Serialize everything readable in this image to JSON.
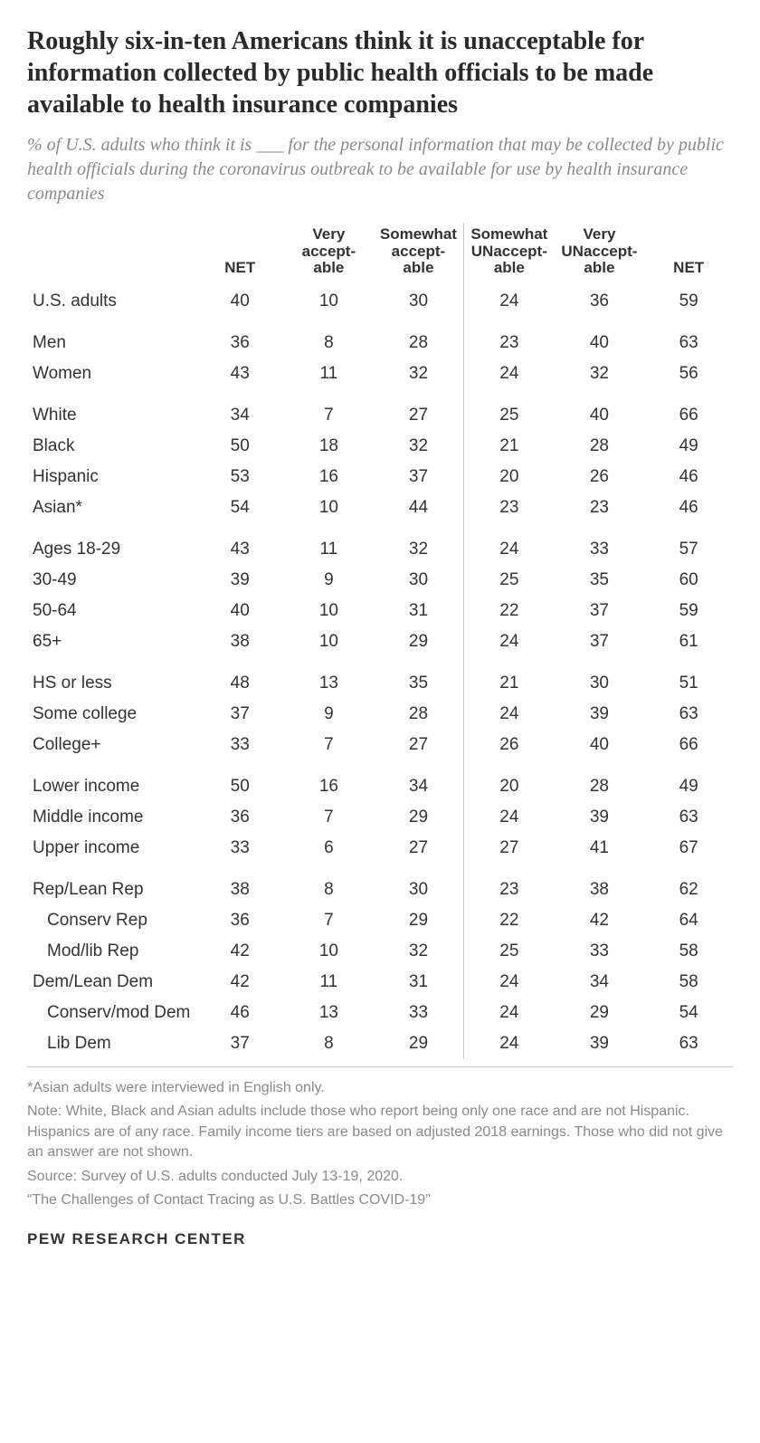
{
  "title": "Roughly six-in-ten Americans think it is unacceptable for information collected by public health officials to be made available to health insurance companies",
  "subtitle": "% of U.S. adults who think it is ___ for the personal information that may be collected by public health officials during the coronavirus outbreak to be available for use by health insurance companies",
  "columns": {
    "net_left": "NET",
    "very_accept": "Very accept-able",
    "somewhat_accept": "Somewhat accept-able",
    "somewhat_unaccept": "Somewhat UNaccept-able",
    "very_unaccept": "Very UNaccept-able",
    "net_right": "NET"
  },
  "groups": [
    [
      {
        "label": "U.S. adults",
        "indent": false,
        "v": [
          "40",
          "10",
          "30",
          "24",
          "36",
          "59"
        ]
      }
    ],
    [
      {
        "label": "Men",
        "indent": false,
        "v": [
          "36",
          "8",
          "28",
          "23",
          "40",
          "63"
        ]
      },
      {
        "label": "Women",
        "indent": false,
        "v": [
          "43",
          "11",
          "32",
          "24",
          "32",
          "56"
        ]
      }
    ],
    [
      {
        "label": "White",
        "indent": false,
        "v": [
          "34",
          "7",
          "27",
          "25",
          "40",
          "66"
        ]
      },
      {
        "label": "Black",
        "indent": false,
        "v": [
          "50",
          "18",
          "32",
          "21",
          "28",
          "49"
        ]
      },
      {
        "label": "Hispanic",
        "indent": false,
        "v": [
          "53",
          "16",
          "37",
          "20",
          "26",
          "46"
        ]
      },
      {
        "label": "Asian*",
        "indent": false,
        "v": [
          "54",
          "10",
          "44",
          "23",
          "23",
          "46"
        ]
      }
    ],
    [
      {
        "label": "Ages 18-29",
        "indent": false,
        "v": [
          "43",
          "11",
          "32",
          "24",
          "33",
          "57"
        ]
      },
      {
        "label": "30-49",
        "indent": false,
        "v": [
          "39",
          "9",
          "30",
          "25",
          "35",
          "60"
        ]
      },
      {
        "label": "50-64",
        "indent": false,
        "v": [
          "40",
          "10",
          "31",
          "22",
          "37",
          "59"
        ]
      },
      {
        "label": "65+",
        "indent": false,
        "v": [
          "38",
          "10",
          "29",
          "24",
          "37",
          "61"
        ]
      }
    ],
    [
      {
        "label": "HS or less",
        "indent": false,
        "v": [
          "48",
          "13",
          "35",
          "21",
          "30",
          "51"
        ]
      },
      {
        "label": "Some college",
        "indent": false,
        "v": [
          "37",
          "9",
          "28",
          "24",
          "39",
          "63"
        ]
      },
      {
        "label": "College+",
        "indent": false,
        "v": [
          "33",
          "7",
          "27",
          "26",
          "40",
          "66"
        ]
      }
    ],
    [
      {
        "label": "Lower income",
        "indent": false,
        "v": [
          "50",
          "16",
          "34",
          "20",
          "28",
          "49"
        ]
      },
      {
        "label": "Middle income",
        "indent": false,
        "v": [
          "36",
          "7",
          "29",
          "24",
          "39",
          "63"
        ]
      },
      {
        "label": "Upper income",
        "indent": false,
        "v": [
          "33",
          "6",
          "27",
          "27",
          "41",
          "67"
        ]
      }
    ],
    [
      {
        "label": "Rep/Lean Rep",
        "indent": false,
        "v": [
          "38",
          "8",
          "30",
          "23",
          "38",
          "62"
        ]
      },
      {
        "label": "Conserv Rep",
        "indent": true,
        "v": [
          "36",
          "7",
          "29",
          "22",
          "42",
          "64"
        ]
      },
      {
        "label": "Mod/lib Rep",
        "indent": true,
        "v": [
          "42",
          "10",
          "32",
          "25",
          "33",
          "58"
        ]
      },
      {
        "label": "Dem/Lean Dem",
        "indent": false,
        "v": [
          "42",
          "11",
          "31",
          "24",
          "34",
          "58"
        ]
      },
      {
        "label": "Conserv/mod Dem",
        "indent": true,
        "v": [
          "46",
          "13",
          "33",
          "24",
          "29",
          "54"
        ]
      },
      {
        "label": "Lib Dem",
        "indent": true,
        "v": [
          "37",
          "8",
          "29",
          "24",
          "39",
          "63"
        ]
      }
    ]
  ],
  "footnotes": [
    "*Asian adults were interviewed in English only.",
    "Note: White, Black and Asian adults include those who report being only one race and are not Hispanic. Hispanics are of any race. Family income tiers are based on adjusted 2018 earnings. Those who did not give an answer are not shown.",
    "Source: Survey of U.S. adults conducted July 13-19, 2020.",
    "“The Challenges of Contact Tracing as U.S. Battles COVID-19”"
  ],
  "brand": "PEW RESEARCH CENTER",
  "style": {
    "bg": "#ffffff",
    "text": "#333333",
    "muted": "#8a8a8a",
    "rule": "#c9c9c9",
    "title_fontsize": 28,
    "subtitle_fontsize": 20,
    "body_fontsize": 19,
    "header_fontsize": 17,
    "foot_fontsize": 16
  }
}
